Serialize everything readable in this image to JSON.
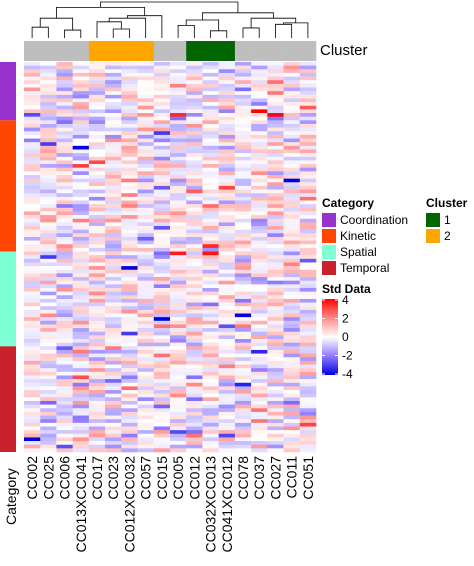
{
  "chart_data": {
    "type": "heatmap",
    "columns": [
      "CC002",
      "CC025",
      "CC006",
      "CC013XCC041",
      "CC017",
      "CC023",
      "CC012XCC032",
      "CC057",
      "CC015",
      "CC005",
      "CC012",
      "CC032XCC013",
      "CC041XCC012",
      "CC078",
      "CC037",
      "CC027",
      "CC011",
      "CC051"
    ],
    "column_cluster": [
      "",
      "",
      "",
      "",
      "2",
      "2",
      "2",
      "2",
      "",
      "",
      "1",
      "1",
      "1",
      "",
      "",
      "",
      "",
      ""
    ],
    "column_dendrogram": [
      {
        "children": [
          0,
          1
        ],
        "height": 0.3
      },
      {
        "children": [
          2,
          3
        ],
        "height": 0.22
      },
      {
        "children": [
          "m0",
          "m1"
        ],
        "height": 0.55
      },
      {
        "children": [
          5,
          6
        ],
        "height": 0.25
      },
      {
        "children": [
          4,
          "m3"
        ],
        "height": 0.45
      },
      {
        "children": [
          "m4",
          7
        ],
        "height": 0.55
      },
      {
        "children": [
          "m5",
          8
        ],
        "height": 0.62
      },
      {
        "children": [
          "m2",
          "m6"
        ],
        "height": 0.85
      },
      {
        "children": [
          9,
          10
        ],
        "height": 0.35
      },
      {
        "children": [
          11,
          12
        ],
        "height": 0.2
      },
      {
        "children": [
          "m8",
          "m9"
        ],
        "height": 0.5
      },
      {
        "children": [
          13,
          14
        ],
        "height": 0.28
      },
      {
        "children": [
          15,
          16
        ],
        "height": 0.38
      },
      {
        "children": [
          "m12",
          17
        ],
        "height": 0.42
      },
      {
        "children": [
          "m11",
          "m13"
        ],
        "height": 0.55
      },
      {
        "children": [
          "m10",
          "m14"
        ],
        "height": 0.7
      },
      {
        "children": [
          "m7",
          "m15"
        ],
        "height": 1.0
      }
    ],
    "row_category_bands": [
      {
        "category": "Coordination",
        "rows": 16
      },
      {
        "category": "Kinetic",
        "rows": 36
      },
      {
        "category": "Spatial",
        "rows": 26
      },
      {
        "category": "Temporal",
        "rows": 29
      }
    ],
    "n_rows": 107,
    "value_range": [
      -4,
      4
    ],
    "colorscale": [
      {
        "value": -4,
        "color": "#0000e0"
      },
      {
        "value": -2,
        "color": "#8f7bff"
      },
      {
        "value": 0,
        "color": "#ffffff"
      },
      {
        "value": 2,
        "color": "#ff8a8a"
      },
      {
        "value": 4,
        "color": "#ff0000"
      }
    ]
  },
  "cluster_label": "Cluster",
  "category_axis_label": "Category",
  "cluster_colors": {
    "1": "#006400",
    "2": "#ffa500",
    "none": "#bebebe"
  },
  "legend_category": {
    "title": "Category",
    "items": [
      {
        "label": "Coordination",
        "color": "#9932cc"
      },
      {
        "label": "Kinetic",
        "color": "#ff4500"
      },
      {
        "label": "Spatial",
        "color": "#7fffd4"
      },
      {
        "label": "Temporal",
        "color": "#c8232c"
      }
    ]
  },
  "legend_cluster": {
    "title": "Cluster",
    "items": [
      {
        "label": "1",
        "color": "#006400"
      },
      {
        "label": "2",
        "color": "#ffa500"
      }
    ]
  },
  "legend_scale": {
    "title": "Std Data",
    "ticks": [
      "4",
      "2",
      "0",
      "-2",
      "-4"
    ]
  }
}
